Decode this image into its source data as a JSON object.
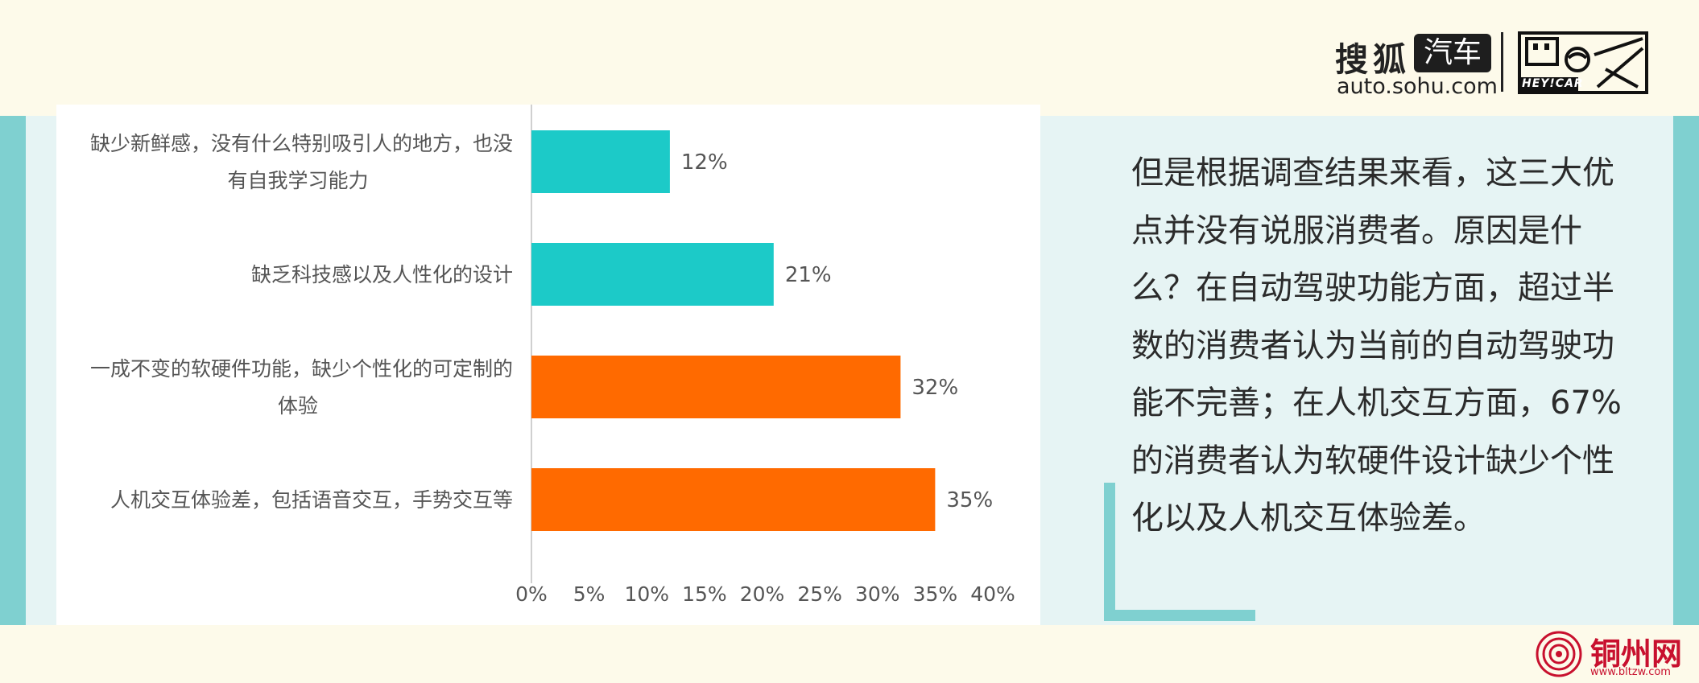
{
  "chart_data": {
    "type": "bar",
    "orientation": "horizontal",
    "categories": [
      [
        "缺少新鲜感，没有什么特别吸引人的地方，也没",
        "有自我学习能力"
      ],
      [
        "缺乏科技感以及人性化的设计"
      ],
      [
        "一成不变的软硬件功能，缺少个性化的可定制的",
        "体验"
      ],
      [
        "人机交互体验差，包括语音交互，手势交互等"
      ]
    ],
    "values": [
      12,
      21,
      32,
      35
    ],
    "value_labels": [
      "12%",
      "21%",
      "32%",
      "35%"
    ],
    "bar_colors": [
      "#1ccac8",
      "#1ccac8",
      "#ff6a00",
      "#ff6a00"
    ],
    "xlim": [
      0,
      40
    ],
    "xticks": [
      0,
      5,
      10,
      15,
      20,
      25,
      30,
      35,
      40
    ],
    "xtick_labels": [
      "0%",
      "5%",
      "10%",
      "15%",
      "20%",
      "25%",
      "30%",
      "35%",
      "40%"
    ],
    "title": "",
    "xlabel": "",
    "ylabel": "",
    "grid": false,
    "legend": "none"
  },
  "logo": {
    "brand_text": "搜狐",
    "car_text": "汽车",
    "url_text": "auto.sohu.com",
    "heycar_text": "HEY!CAR"
  },
  "article": {
    "paragraph": "但是根据调查结果来看，这三大优点并没有说服消费者。原因是什么？在自动驾驶功能方面，超过半数的消费者认为当前的自动驾驶功能不完善；在人机交互方面，67%的消费者认为软硬件设计缺少个性化以及人机交互体验差。"
  },
  "watermark": {
    "name": "铜州网",
    "url": "www.bltzw.com"
  },
  "colors": {
    "background": "#fdfaea",
    "band": "#e6f4f4",
    "accent_teal": "#7fd0d0",
    "bar_teal": "#1ccac8",
    "bar_orange": "#ff6a00",
    "watermark_red": "#c8102e"
  }
}
